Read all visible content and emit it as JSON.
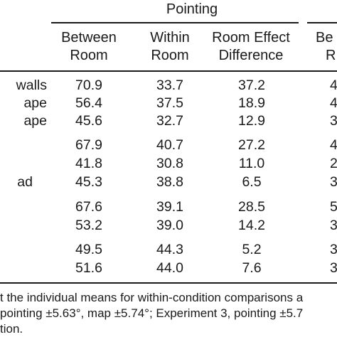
{
  "table": {
    "group_header": "Pointing",
    "columns": [
      {
        "line1": "Between",
        "line2": "Room"
      },
      {
        "line1": "Within",
        "line2": "Room"
      },
      {
        "line1": "Room Effect",
        "line2": "Difference"
      },
      {
        "line1": "Be",
        "line2": "R"
      }
    ],
    "row_labels": [
      "walls",
      "ape",
      "ape",
      "",
      "",
      "ad",
      "",
      "",
      "",
      ""
    ],
    "rows": [
      [
        "70.9",
        "33.7",
        "37.2",
        "4"
      ],
      [
        "56.4",
        "37.5",
        "18.9",
        "4"
      ],
      [
        "45.6",
        "32.7",
        "12.9",
        "3"
      ],
      [
        "67.9",
        "40.7",
        "27.2",
        "4"
      ],
      [
        "41.8",
        "30.8",
        "11.0",
        "2"
      ],
      [
        "45.3",
        "38.8",
        "6.5",
        "3"
      ],
      [
        "67.6",
        "39.1",
        "28.5",
        "5"
      ],
      [
        "53.2",
        "39.0",
        "14.2",
        "3"
      ],
      [
        "49.5",
        "44.3",
        "5.2",
        "3"
      ],
      [
        "51.6",
        "44.0",
        "7.6",
        "3"
      ]
    ]
  },
  "footnote": {
    "line1": "t the individual means for within-condition comparisons a",
    "line2": "pointing ±5.63°, map ±5.74°; Experiment 3, pointing ±5.7",
    "line3": "tion."
  }
}
